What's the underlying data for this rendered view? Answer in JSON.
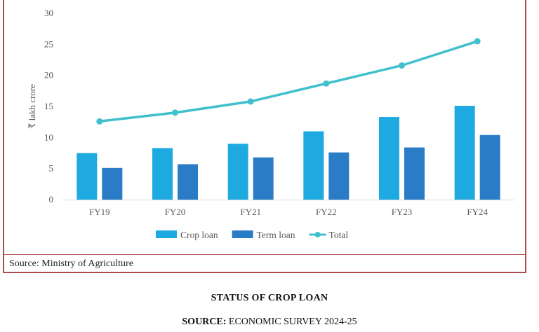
{
  "chart_data": {
    "type": "bar",
    "categories": [
      "FY19",
      "FY20",
      "FY21",
      "FY22",
      "FY23",
      "FY24"
    ],
    "series": [
      {
        "name": "Crop loan",
        "kind": "bar",
        "color": "#1fa9e1",
        "values": [
          7.5,
          8.3,
          9.0,
          11.0,
          13.3,
          15.1
        ]
      },
      {
        "name": "Term loan",
        "kind": "bar",
        "color": "#2a7cc7",
        "values": [
          5.1,
          5.7,
          6.8,
          7.6,
          8.4,
          10.4
        ]
      },
      {
        "name": "Total",
        "kind": "line",
        "color": "#3fc0cc",
        "values": [
          12.6,
          14.0,
          15.8,
          18.7,
          21.6,
          25.5
        ]
      }
    ],
    "ylabel": "₹ lakh crore",
    "ylim": [
      0,
      30
    ],
    "yticks": [
      0,
      5,
      10,
      15,
      20,
      25,
      30
    ],
    "legend_position": "bottom",
    "grid": false
  },
  "source_note": "Source: Ministry of Agriculture",
  "caption": {
    "title": "STATUS OF CROP LOAN",
    "source_label": "SOURCE:",
    "source_text": " ECONOMIC SURVEY 2024-25"
  }
}
